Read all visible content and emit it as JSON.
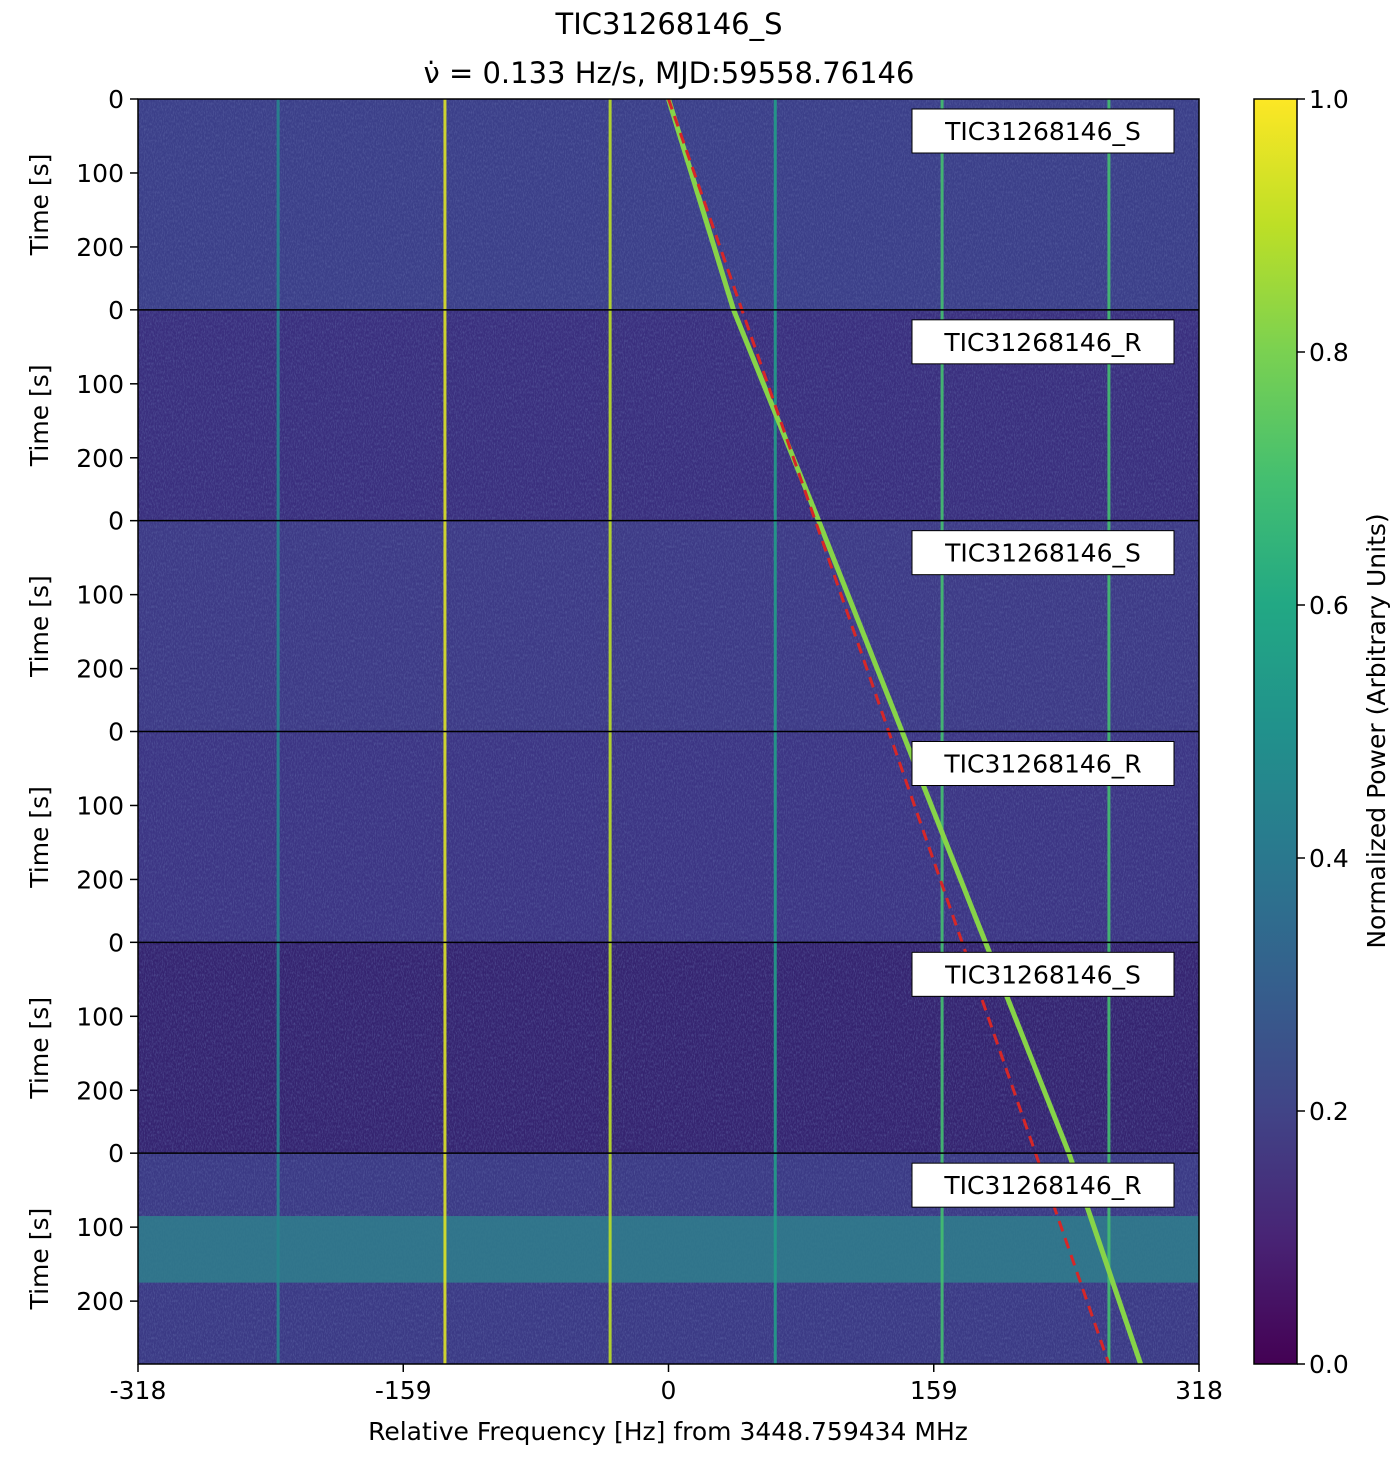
{
  "chart_data": {
    "type": "heatmap",
    "title": "TIC31268146_S",
    "subtitle": "ν̇ = 0.133 Hz/s, MJD:59558.76146",
    "xlabel": "Relative Frequency [Hz] from 3448.759434 MHz",
    "ylabel": "Time [s]",
    "xlim": [
      -318,
      318
    ],
    "x_ticks": [
      -318,
      -159,
      0,
      159,
      318
    ],
    "x_tick_labels": [
      "-318",
      "-159",
      "0",
      "159",
      "318"
    ],
    "panel_ylim": [
      0,
      285
    ],
    "y_ticks": [
      0,
      100,
      200
    ],
    "y_tick_labels": [
      "0",
      "100",
      "200"
    ],
    "panels": [
      {
        "label": "TIC31268146_S",
        "background": "#3b3f89",
        "signal_start_hz": 0,
        "signal_end_hz": 39
      },
      {
        "label": "TIC31268146_R",
        "background": "#3a2f7e",
        "signal_start_hz": 39,
        "signal_end_hz": 90
      },
      {
        "label": "TIC31268146_S",
        "background": "#3d3a86",
        "signal_start_hz": 90,
        "signal_end_hz": 140
      },
      {
        "label": "TIC31268146_R",
        "background": "#3c3584",
        "signal_start_hz": 140,
        "signal_end_hz": 190
      },
      {
        "label": "TIC31268146_S",
        "background": "#352470",
        "signal_start_hz": 190,
        "signal_end_hz": 240
      },
      {
        "label": "TIC31268146_R",
        "background": "#3b3a85",
        "signal_start_hz": 240,
        "signal_end_hz": 283
      }
    ],
    "rfi_lines": [
      {
        "x": -234,
        "intensity": 0.45
      },
      {
        "x": -134,
        "intensity": 0.95
      },
      {
        "x": -35,
        "intensity": 0.9
      },
      {
        "x": 64,
        "intensity": 0.55
      },
      {
        "x": 164,
        "intensity": 0.7
      },
      {
        "x": 264,
        "intensity": 0.7
      }
    ],
    "drift_fit_line": {
      "x_start": 0,
      "x_end": 264,
      "color": "#d62728",
      "style": "dashed"
    },
    "broadband_band": {
      "panel": 6,
      "t_start": 85,
      "t_end": 175
    },
    "colorbar": {
      "label": "Normalized Power (Arbitrary Units)",
      "range": [
        0.0,
        1.0
      ],
      "ticks": [
        0.0,
        0.2,
        0.4,
        0.6,
        0.8,
        1.0
      ],
      "tick_labels": [
        "0.0",
        "0.2",
        "0.4",
        "0.6",
        "0.8",
        "1.0"
      ],
      "colormap": "viridis"
    }
  }
}
